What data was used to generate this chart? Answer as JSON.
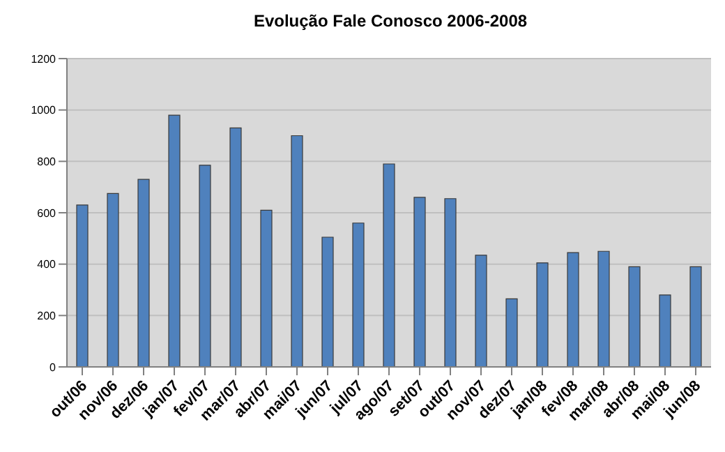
{
  "chart_data": {
    "type": "bar",
    "title": "Evolução Fale Conosco 2006-2008",
    "categories": [
      "out/06",
      "nov/06",
      "dez/06",
      "jan/07",
      "fev/07",
      "mar/07",
      "abr/07",
      "mai/07",
      "jun/07",
      "jul/07",
      "ago/07",
      "set/07",
      "out/07",
      "nov/07",
      "dez/07",
      "jan/08",
      "fev/08",
      "mar/08",
      "abr/08",
      "mai/08",
      "jun/08"
    ],
    "values": [
      630,
      675,
      730,
      980,
      785,
      930,
      610,
      900,
      505,
      560,
      790,
      660,
      655,
      435,
      265,
      405,
      445,
      450,
      390,
      280,
      390
    ],
    "color": "#4f81bd",
    "ylim": [
      0,
      1200
    ],
    "yticks": [
      0,
      200,
      400,
      600,
      800,
      1000,
      1200
    ],
    "grid": "y",
    "legend": false
  }
}
